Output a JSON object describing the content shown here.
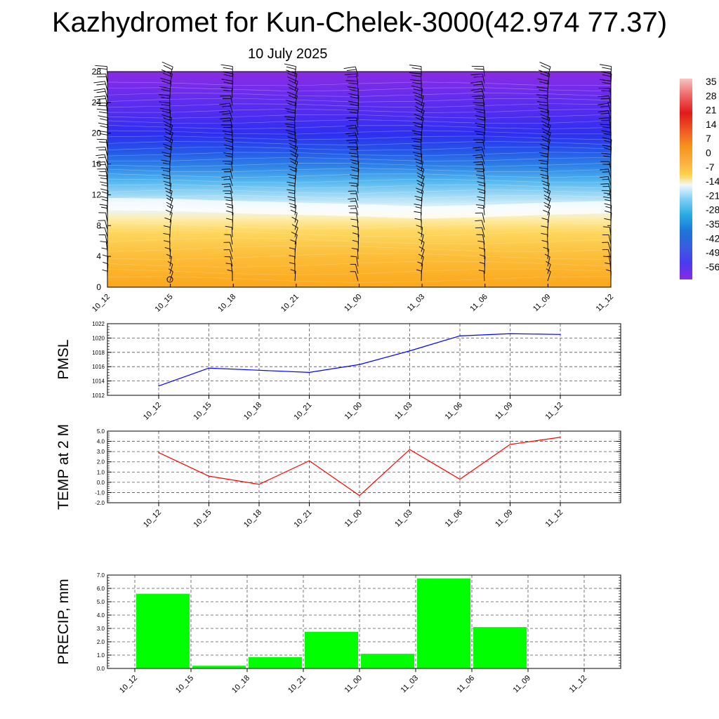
{
  "header": {
    "title": "Kazhydromet for Kun-Chelek-3000(42.974 77.37)",
    "date": "10 July 2025"
  },
  "colors": {
    "pmsl_line": "#0000ff",
    "temp_line": "#ff0000",
    "precip_bar": "#00ff00"
  },
  "chart_data": [
    {
      "type": "heatmap",
      "title": "",
      "xlabel": "",
      "ylabel": "",
      "x_ticks": [
        "10_12",
        "10_15",
        "10_18",
        "10_21",
        "11_00",
        "11_03",
        "11_06",
        "11_09",
        "11_12"
      ],
      "y_ticks": [
        0,
        4,
        8,
        12,
        16,
        20,
        24,
        28
      ],
      "ylim": [
        0,
        28
      ],
      "freezing_level": [
        10.0,
        9.9,
        9.6,
        9.4,
        9.2,
        8.9,
        9.1,
        9.4,
        9.6
      ],
      "overlay": "wind barbs",
      "colorbar": {
        "labels": [
          "35",
          "28",
          "21",
          "14",
          "7",
          "0",
          "-7",
          "-14",
          "-21",
          "-28",
          "-35",
          "-42",
          "-49",
          "-56"
        ],
        "colors": [
          "#f7b7b7",
          "#f06a6a",
          "#e11a1a",
          "#f05a22",
          "#f7941d",
          "#fbb040",
          "#fcd34d",
          "#e0f2fb",
          "#7fd0f5",
          "#27aae1",
          "#1c75d8",
          "#3a5ce0",
          "#4a3af0",
          "#8a2be2"
        ]
      }
    },
    {
      "type": "line",
      "ylabel": "PMSL",
      "x": [
        "10_12",
        "10_15",
        "10_18",
        "10_21",
        "11_00",
        "11_03",
        "11_06",
        "11_09",
        "11_12"
      ],
      "values": [
        1013.3,
        1015.8,
        1015.5,
        1015.2,
        1016.3,
        1018.2,
        1020.3,
        1020.6,
        1020.5
      ],
      "ylim": [
        1012,
        1022
      ],
      "y_ticks": [
        "1012",
        "1014",
        "1016",
        "1018",
        "1020",
        "1022"
      ],
      "grid": true
    },
    {
      "type": "line",
      "ylabel": "TEMP at 2 M",
      "x": [
        "10_12",
        "10_15",
        "10_18",
        "10_21",
        "11_00",
        "11_03",
        "11_06",
        "11_09",
        "11_12"
      ],
      "values": [
        2.9,
        0.6,
        -0.2,
        2.1,
        -1.3,
        3.2,
        0.3,
        3.7,
        4.4
      ],
      "ylim": [
        -2,
        5
      ],
      "y_ticks": [
        "-2.0",
        "-1.0",
        "0.0",
        "1.0",
        "2.0",
        "3.0",
        "4.0",
        "5.0"
      ],
      "grid": true
    },
    {
      "type": "bar",
      "ylabel": "PRECIP, mm",
      "x_ticks": [
        "10_12",
        "10_15",
        "10_18",
        "10_21",
        "11_00",
        "11_03",
        "11_06",
        "11_09",
        "11_12"
      ],
      "values": [
        5.6,
        0.2,
        0.85,
        2.75,
        1.1,
        6.75,
        3.1,
        0
      ],
      "ylim": [
        0,
        7
      ],
      "y_ticks": [
        "0.0",
        "1.0",
        "2.0",
        "3.0",
        "4.0",
        "5.0",
        "6.0",
        "7.0"
      ],
      "grid": true
    }
  ]
}
